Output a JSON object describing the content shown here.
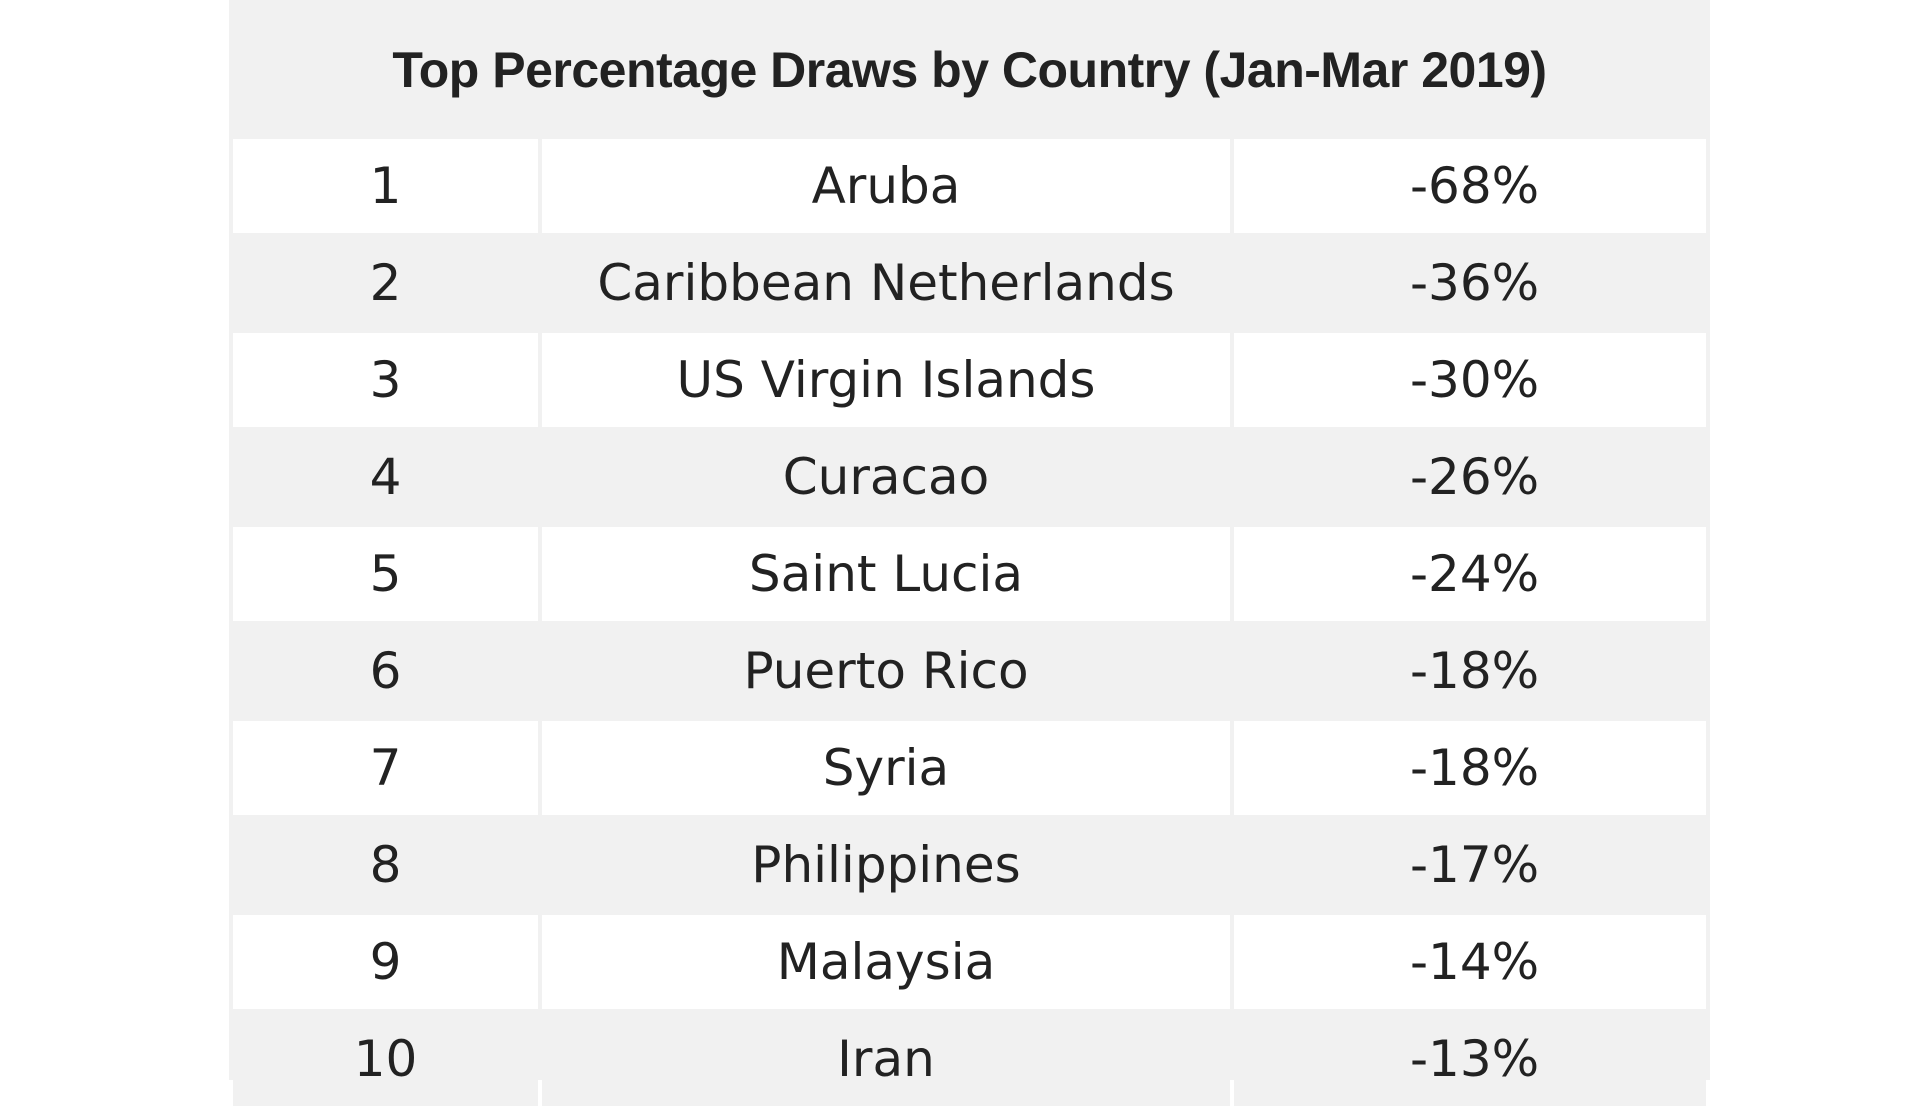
{
  "table": {
    "title": "Top Percentage Draws by Country (Jan-Mar 2019)",
    "rows": [
      {
        "rank": "1",
        "country": "Aruba",
        "change": "-68%"
      },
      {
        "rank": "2",
        "country": "Caribbean Netherlands",
        "change": "-36%"
      },
      {
        "rank": "3",
        "country": "US Virgin Islands",
        "change": "-30%"
      },
      {
        "rank": "4",
        "country": "Curacao",
        "change": "-26%"
      },
      {
        "rank": "5",
        "country": "Saint Lucia",
        "change": "-24%"
      },
      {
        "rank": "6",
        "country": "Puerto Rico",
        "change": "-18%"
      },
      {
        "rank": "7",
        "country": "Syria",
        "change": "-18%"
      },
      {
        "rank": "8",
        "country": "Philippines",
        "change": "-17%"
      },
      {
        "rank": "9",
        "country": "Malaysia",
        "change": "-14%"
      },
      {
        "rank": "10",
        "country": "Iran",
        "change": "-13%"
      }
    ]
  },
  "colors": {
    "band_light": "#ffffff",
    "band_gray": "#f1f1f1",
    "text": "#222222"
  }
}
